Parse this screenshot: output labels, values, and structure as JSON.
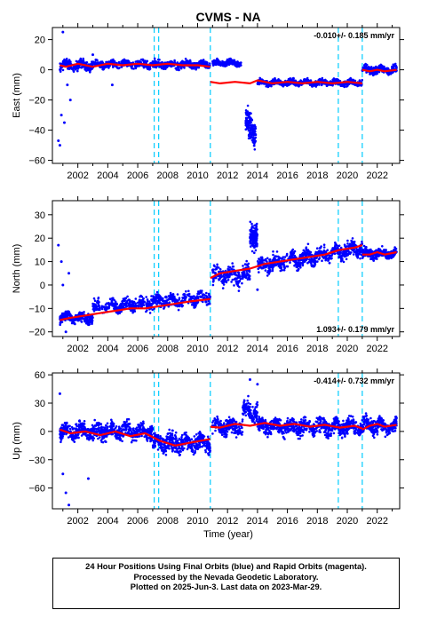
{
  "chart_data": {
    "type": "scatter",
    "title": "CVMS - NA",
    "xlabel": "Time (year)",
    "xlim": [
      2000.3,
      2023.5
    ],
    "x_ticks": [
      2002,
      2004,
      2006,
      2008,
      2010,
      2012,
      2014,
      2016,
      2018,
      2020,
      2022
    ],
    "vertical_dashed_lines": [
      2007.1,
      2007.4,
      2010.85,
      2019.4,
      2021.0
    ],
    "colors": {
      "observed": "#0000ff",
      "model": "#ff0000",
      "event_lines": "#00ccff"
    },
    "panels": [
      {
        "name": "east",
        "ylabel": "East (mm)",
        "ylim": [
          -62,
          28
        ],
        "y_ticks": [
          20,
          0,
          -20,
          -40,
          -60
        ],
        "rate_label": "-0.010+/- 0.185 mm/yr",
        "rate_position": "top-right",
        "model_line": [
          {
            "x": [
              2000.8,
              2001.2,
              2002.0,
              2003.0,
              2004.0,
              2005.0,
              2006.0,
              2007.0,
              2008.0,
              2009.0,
              2010.0,
              2010.85
            ],
            "y": [
              3,
              2,
              4,
              2,
              4,
              3,
              4,
              3,
              4,
              3,
              3,
              2
            ]
          },
          {
            "x": [
              2010.85,
              2011.5,
              2012.5,
              2013.5,
              2014.0,
              2015.0,
              2016.0,
              2017.0,
              2018.0,
              2019.0,
              2020.0,
              2021.0
            ],
            "y": [
              -8,
              -9,
              -8,
              -9,
              -7,
              -9,
              -8,
              -9,
              -8,
              -9,
              -8,
              -9
            ]
          },
          {
            "x": [
              2021.0,
              2021.5,
              2022.0,
              2022.5,
              2023.3
            ],
            "y": [
              0,
              -1,
              0,
              -1,
              0
            ]
          }
        ],
        "observed_segments": [
          {
            "x_range": [
              2000.8,
              2003.0
            ],
            "y_range": [
              -3,
              8
            ],
            "count": 260,
            "base": 3
          },
          {
            "x_range": [
              2003.0,
              2010.85
            ],
            "y_range": [
              -1,
              8
            ],
            "count": 620,
            "base": 3.5
          },
          {
            "x_range": [
              2011.0,
              2012.9
            ],
            "y_range": [
              1,
              8
            ],
            "count": 200,
            "base": 4.5
          },
          {
            "x_range": [
              2013.2,
              2013.9
            ],
            "y_range": [
              -52,
              -15
            ],
            "count": 140,
            "base": -38
          },
          {
            "x_range": [
              2014.0,
              2021.0
            ],
            "y_range": [
              -12,
              -5
            ],
            "count": 700,
            "base": -8.5
          },
          {
            "x_range": [
              2021.0,
              2023.3
            ],
            "y_range": [
              -5,
              4
            ],
            "count": 260,
            "base": 0
          }
        ],
        "outliers": [
          {
            "x": 2000.7,
            "y": -47
          },
          {
            "x": 2000.8,
            "y": -50
          },
          {
            "x": 2001.0,
            "y": 25
          },
          {
            "x": 2000.9,
            "y": -30
          },
          {
            "x": 2001.1,
            "y": -35
          },
          {
            "x": 2001.3,
            "y": -10
          },
          {
            "x": 2001.5,
            "y": -20
          },
          {
            "x": 2003.0,
            "y": 10
          },
          {
            "x": 2004.3,
            "y": -10
          }
        ]
      },
      {
        "name": "north",
        "ylabel": "North (mm)",
        "ylim": [
          -22,
          36
        ],
        "y_ticks": [
          30,
          20,
          10,
          0,
          -10,
          -20
        ],
        "rate_label": "1.093+/- 0.179 mm/yr",
        "rate_position": "bottom-right",
        "model_line": [
          {
            "x": [
              2000.8,
              2001.5,
              2002.5,
              2003.5,
              2004.5,
              2005.5,
              2006.5,
              2007.5,
              2008.5,
              2009.5,
              2010.85
            ],
            "y": [
              -15,
              -14,
              -13,
              -12,
              -11,
              -10,
              -10,
              -9,
              -8,
              -7,
              -6
            ]
          },
          {
            "x": [
              2010.85,
              2011.5,
              2012.5,
              2013.5,
              2014.5,
              2015.5,
              2016.5,
              2017.5,
              2018.5,
              2019.5,
              2020.5,
              2021.0
            ],
            "y": [
              3,
              5,
              6,
              7,
              9,
              10,
              11,
              12,
              13,
              15,
              16,
              17
            ]
          },
          {
            "x": [
              2021.0,
              2021.5,
              2022.0,
              2022.5,
              2023.3
            ],
            "y": [
              13,
              13,
              14,
              13,
              14
            ]
          }
        ],
        "observed_segments": [
          {
            "x_range": [
              2000.8,
              2003.0
            ],
            "y_range": [
              -18,
              -10
            ],
            "count": 260,
            "base": -14
          },
          {
            "x_range": [
              2003.0,
              2010.85
            ],
            "y_range": [
              -14,
              -4
            ],
            "count": 620,
            "base": -10
          },
          {
            "x_range": [
              2011.0,
              2013.5
            ],
            "y_range": [
              -3,
              10
            ],
            "count": 220,
            "base": 4
          },
          {
            "x_range": [
              2013.5,
              2014.0
            ],
            "y_range": [
              12,
              33
            ],
            "count": 120,
            "base": 22
          },
          {
            "x_range": [
              2014.0,
              2021.0
            ],
            "y_range": [
              6,
              18
            ],
            "count": 700,
            "base": 12
          },
          {
            "x_range": [
              2021.0,
              2023.3
            ],
            "y_range": [
              10,
              17
            ],
            "count": 260,
            "base": 13.5
          }
        ],
        "outliers": [
          {
            "x": 2000.7,
            "y": 17
          },
          {
            "x": 2000.9,
            "y": 10
          },
          {
            "x": 2001.0,
            "y": 0
          },
          {
            "x": 2001.2,
            "y": -20
          },
          {
            "x": 2001.4,
            "y": 5
          },
          {
            "x": 2014.0,
            "y": -2
          }
        ]
      },
      {
        "name": "up",
        "ylabel": "Up (mm)",
        "ylim": [
          -82,
          62
        ],
        "y_ticks": [
          60,
          30,
          0,
          -30,
          -60
        ],
        "rate_label": "-0.414+/- 0.732 mm/yr",
        "rate_position": "top-right",
        "model_line": [
          {
            "x": [
              2000.8,
              2001.5,
              2002.5,
              2003.5,
              2004.5,
              2005.5,
              2006.5,
              2007.5,
              2008.5,
              2009.5,
              2010.85
            ],
            "y": [
              2,
              -2,
              0,
              -4,
              0,
              -5,
              -2,
              -10,
              -15,
              -12,
              -8
            ]
          },
          {
            "x": [
              2010.85,
              2011.5,
              2012.5,
              2013.5,
              2014.5,
              2015.5,
              2016.5,
              2017.5,
              2018.5,
              2019.5,
              2020.5,
              2021.0
            ],
            "y": [
              5,
              4,
              8,
              6,
              9,
              6,
              8,
              5,
              7,
              4,
              6,
              3
            ]
          },
          {
            "x": [
              2021.0,
              2021.5,
              2022.0,
              2022.5,
              2023.3
            ],
            "y": [
              2,
              6,
              8,
              5,
              7
            ]
          }
        ],
        "observed_segments": [
          {
            "x_range": [
              2000.8,
              2007.0
            ],
            "y_range": [
              -15,
              15
            ],
            "count": 650,
            "base": 0
          },
          {
            "x_range": [
              2007.0,
              2010.85
            ],
            "y_range": [
              -30,
              5
            ],
            "count": 420,
            "base": -12
          },
          {
            "x_range": [
              2011.0,
              2013.0
            ],
            "y_range": [
              -10,
              20
            ],
            "count": 200,
            "base": 5
          },
          {
            "x_range": [
              2013.0,
              2014.0
            ],
            "y_range": [
              10,
              45
            ],
            "count": 110,
            "base": 22
          },
          {
            "x_range": [
              2014.0,
              2021.0
            ],
            "y_range": [
              -10,
              20
            ],
            "count": 700,
            "base": 5
          },
          {
            "x_range": [
              2021.0,
              2023.3
            ],
            "y_range": [
              -10,
              20
            ],
            "count": 260,
            "base": 6
          }
        ],
        "outliers": [
          {
            "x": 2000.8,
            "y": 40
          },
          {
            "x": 2001.0,
            "y": -45
          },
          {
            "x": 2001.2,
            "y": -65
          },
          {
            "x": 2001.4,
            "y": -78
          },
          {
            "x": 2002.7,
            "y": -50
          },
          {
            "x": 2013.5,
            "y": 55
          },
          {
            "x": 2014.0,
            "y": 50
          }
        ]
      }
    ]
  },
  "caption": {
    "line1": "24 Hour Positions Using Final Orbits (blue) and Rapid Orbits (magenta).",
    "line2": "Processed by the Nevada Geodetic Laboratory.",
    "line3": "Plotted on 2025-Jun-3. Last data on 2023-Mar-29."
  }
}
